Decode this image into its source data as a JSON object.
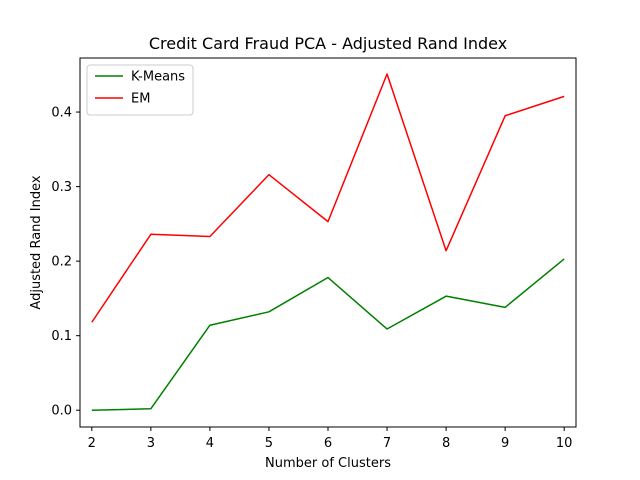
{
  "chart_data": {
    "type": "line",
    "title": "Credit Card Fraud PCA - Adjusted Rand Index",
    "xlabel": "Number of Clusters",
    "ylabel": "Adjusted Rand Index",
    "x": [
      2,
      3,
      4,
      5,
      6,
      7,
      8,
      9,
      10
    ],
    "xlim": [
      1.8,
      10.2
    ],
    "ylim": [
      -0.0225,
      0.4725
    ],
    "xticks": [
      2,
      3,
      4,
      5,
      6,
      7,
      8,
      9,
      10
    ],
    "yticks": [
      0.0,
      0.1,
      0.2,
      0.3,
      0.4
    ],
    "ytick_labels": [
      "0.0",
      "0.1",
      "0.2",
      "0.3",
      "0.4"
    ],
    "grid": false,
    "legend": "upper-left",
    "series": [
      {
        "name": "K-Means",
        "color": "#008000",
        "values": [
          0.0,
          0.002,
          0.114,
          0.132,
          0.178,
          0.109,
          0.153,
          0.138,
          0.203
        ]
      },
      {
        "name": "EM",
        "color": "#ff0000",
        "values": [
          0.118,
          0.236,
          0.233,
          0.316,
          0.253,
          0.451,
          0.214,
          0.395,
          0.421
        ]
      }
    ]
  }
}
